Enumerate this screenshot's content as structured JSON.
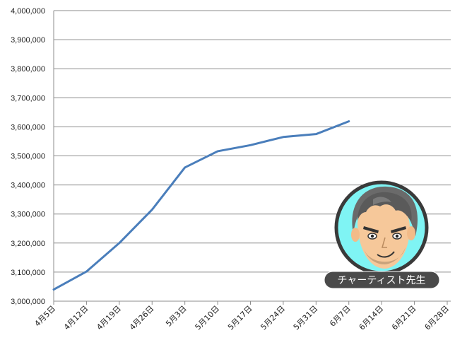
{
  "chart_data": {
    "type": "line",
    "title": "",
    "xlabel": "",
    "ylabel": "",
    "categories": [
      "4月5日",
      "4月12日",
      "4月19日",
      "4月26日",
      "5月3日",
      "5月10日",
      "5月17日",
      "5月24日",
      "5月31日",
      "6月7日",
      "6月14日",
      "6月21日",
      "6月28日"
    ],
    "ylim": [
      3000000,
      4000000
    ],
    "y_ticks": [
      "3,000,000",
      "3,100,000",
      "3,200,000",
      "3,300,000",
      "3,400,000",
      "3,500,000",
      "3,600,000",
      "3,700,000",
      "3,800,000",
      "3,900,000",
      "4,000,000"
    ],
    "grid": true,
    "series": [
      {
        "values": [
          3040000,
          3102000,
          3200000,
          3315000,
          3460000,
          3516000,
          3537000,
          3565000,
          3575000,
          3619000,
          null,
          null,
          null
        ],
        "color": "#4a7ebb"
      }
    ]
  },
  "badge": {
    "label": "チャーティスト先生",
    "avatar_icon": "teacher-avatar-icon",
    "background_color": "#7ff4f4",
    "label_background": "#4a4a4a"
  }
}
